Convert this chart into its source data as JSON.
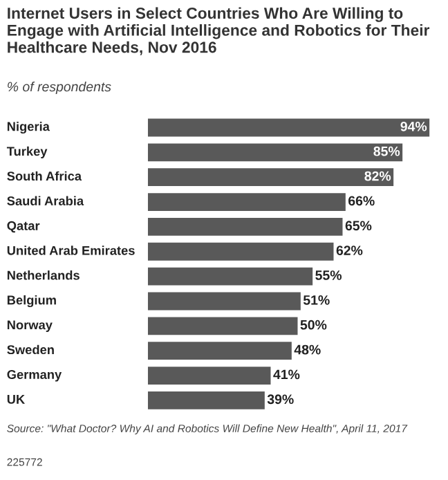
{
  "chart_data": {
    "type": "bar",
    "orientation": "horizontal",
    "title": "Internet Users in Select Countries Who Are Willing to Engage with Artificial Intelligence and Robotics for Their Healthcare Needs, Nov 2016",
    "subtitle": "% of respondents",
    "categories": [
      "Nigeria",
      "Turkey",
      "South Africa",
      "Saudi Arabia",
      "Qatar",
      "United Arab Emirates",
      "Netherlands",
      "Belgium",
      "Norway",
      "Sweden",
      "Germany",
      "UK"
    ],
    "values": [
      94,
      85,
      82,
      66,
      65,
      62,
      55,
      51,
      50,
      48,
      41,
      39
    ],
    "value_labels": [
      "94%",
      "85%",
      "82%",
      "66%",
      "65%",
      "62%",
      "55%",
      "51%",
      "50%",
      "48%",
      "41%",
      "39%"
    ],
    "color": "#595959",
    "tick_labels": false,
    "grid": false,
    "legend": false,
    "annotations": [
      "Source: \"What Doctor? Why AI and Robotics Will Define New Health\", April 11, 2017",
      "225772"
    ]
  }
}
